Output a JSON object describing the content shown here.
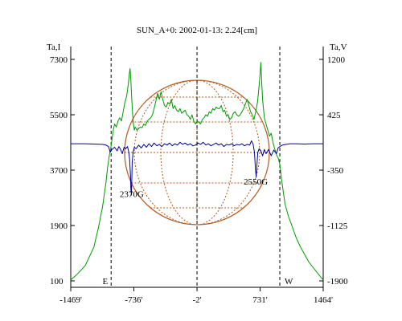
{
  "chart_data": {
    "type": "line",
    "title": "SUN_A+0: 2002-01-13: 2.24[cm]",
    "left_axis": {
      "label": "Ta,I",
      "ticks": [
        7300,
        5500,
        3700,
        1900,
        100
      ],
      "range": [
        100,
        7300
      ]
    },
    "right_axis": {
      "label": "Ta,V",
      "ticks": [
        1200,
        425,
        -350,
        -1125,
        -1900
      ],
      "range": [
        -1900,
        1200
      ]
    },
    "x_axis": {
      "ticks": [
        "-1469'",
        "-736'",
        "-2'",
        "731'",
        "1464'"
      ],
      "range": [
        -1469,
        1464
      ]
    },
    "limb_markers": {
      "east": {
        "label": "E",
        "x": -1000
      },
      "center": {
        "x": -2
      },
      "west": {
        "label": "W",
        "x": 960
      }
    },
    "annotations": [
      {
        "text": "2370G",
        "x": -760,
        "y_v": -680
      },
      {
        "text": "2550G",
        "x": 680,
        "y_v": -510
      }
    ],
    "grid": false,
    "series": [
      {
        "axis": "left",
        "color": "#009900",
        "x": [
          -1469,
          -1400,
          -1300,
          -1200,
          -1150,
          -1100,
          -1060,
          -1040,
          -1020,
          -1005,
          -990,
          -975,
          -960,
          -940,
          -920,
          -900,
          -880,
          -860,
          -840,
          -820,
          -800,
          -790,
          -780,
          -770,
          -760,
          -750,
          -740,
          -730,
          -720,
          -700,
          -680,
          -660,
          -640,
          -620,
          -600,
          -580,
          -560,
          -540,
          -520,
          -500,
          -480,
          -460,
          -440,
          -420,
          -400,
          -380,
          -360,
          -340,
          -320,
          -300,
          -280,
          -260,
          -240,
          -220,
          -200,
          -180,
          -160,
          -140,
          -120,
          -100,
          -80,
          -60,
          -40,
          -20,
          0,
          20,
          40,
          60,
          80,
          100,
          120,
          140,
          160,
          180,
          200,
          220,
          240,
          260,
          280,
          300,
          320,
          340,
          360,
          380,
          400,
          420,
          440,
          460,
          480,
          500,
          520,
          540,
          560,
          580,
          600,
          620,
          640,
          660,
          680,
          700,
          715,
          730,
          740,
          750,
          760,
          770,
          780,
          790,
          800,
          820,
          840,
          860,
          880,
          900,
          920,
          940,
          960,
          980,
          1000,
          1020,
          1060,
          1100,
          1150,
          1200,
          1300,
          1400,
          1464
        ],
        "values": [
          130,
          300,
          600,
          1200,
          1800,
          2500,
          3300,
          3800,
          4200,
          4400,
          4700,
          5000,
          5200,
          5100,
          5300,
          5400,
          5300,
          5600,
          5900,
          6100,
          6500,
          6800,
          7000,
          6600,
          6000,
          5500,
          5200,
          5000,
          5100,
          5000,
          5050,
          5100,
          5080,
          5200,
          5150,
          5300,
          5350,
          5400,
          5500,
          5700,
          5950,
          6200,
          6000,
          6250,
          6000,
          5800,
          5750,
          5900,
          5850,
          6000,
          5700,
          5800,
          5650,
          5600,
          5700,
          5550,
          5600,
          5650,
          5500,
          5450,
          5350,
          5500,
          5300,
          5200,
          5300,
          5250,
          5200,
          5350,
          5400,
          5500,
          5450,
          5600,
          5550,
          5700,
          5650,
          5750,
          5700,
          5700,
          5800,
          5600,
          5650,
          5450,
          5500,
          5350,
          5400,
          5550,
          5600,
          5500,
          5450,
          5500,
          5600,
          5700,
          5850,
          6000,
          5800,
          5600,
          5500,
          5350,
          5600,
          5900,
          6300,
          6800,
          7200,
          6500,
          6000,
          5700,
          5400,
          5300,
          5200,
          5000,
          4800,
          4900,
          4600,
          4400,
          4200,
          4100,
          3900,
          3400,
          3000,
          2600,
          2200,
          1900,
          1500,
          1200,
          700,
          350,
          130
        ]
      },
      {
        "axis": "right",
        "color": "#000099",
        "x": [
          -1469,
          -1300,
          -1200,
          -1100,
          -1060,
          -1030,
          -1010,
          -990,
          -960,
          -930,
          -910,
          -890,
          -870,
          -850,
          -830,
          -810,
          -795,
          -785,
          -775,
          -770,
          -765,
          -760,
          -755,
          -745,
          -730,
          -710,
          -680,
          -650,
          -620,
          -590,
          -560,
          -530,
          -500,
          -470,
          -440,
          -410,
          -380,
          -350,
          -320,
          -290,
          -260,
          -230,
          -200,
          -170,
          -140,
          -110,
          -80,
          -50,
          -20,
          10,
          40,
          70,
          100,
          130,
          160,
          190,
          220,
          250,
          280,
          310,
          340,
          370,
          400,
          430,
          460,
          490,
          520,
          550,
          580,
          610,
          630,
          650,
          665,
          675,
          685,
          695,
          705,
          720,
          740,
          760,
          780,
          800,
          830,
          860,
          890,
          920,
          940,
          960,
          990,
          1030,
          1080,
          1150,
          1250,
          1350,
          1464
        ],
        "values": [
          20,
          20,
          15,
          10,
          0,
          -20,
          -100,
          -60,
          -30,
          -80,
          -20,
          -60,
          -120,
          -30,
          -50,
          -20,
          -100,
          -200,
          -420,
          -620,
          -700,
          -500,
          -250,
          -100,
          -30,
          -50,
          0,
          -40,
          10,
          -30,
          20,
          -20,
          30,
          -10,
          10,
          -20,
          20,
          0,
          30,
          -10,
          20,
          0,
          40,
          10,
          30,
          0,
          20,
          -10,
          0,
          30,
          10,
          40,
          0,
          20,
          -10,
          10,
          30,
          0,
          20,
          -20,
          10,
          0,
          20,
          -10,
          10,
          0,
          20,
          -10,
          10,
          0,
          60,
          10,
          -100,
          -300,
          -450,
          -250,
          -100,
          -50,
          -80,
          -150,
          -60,
          -120,
          -60,
          -150,
          -70,
          -120,
          -40,
          -20,
          0,
          10,
          20,
          20,
          15,
          20,
          20
        ]
      }
    ]
  }
}
